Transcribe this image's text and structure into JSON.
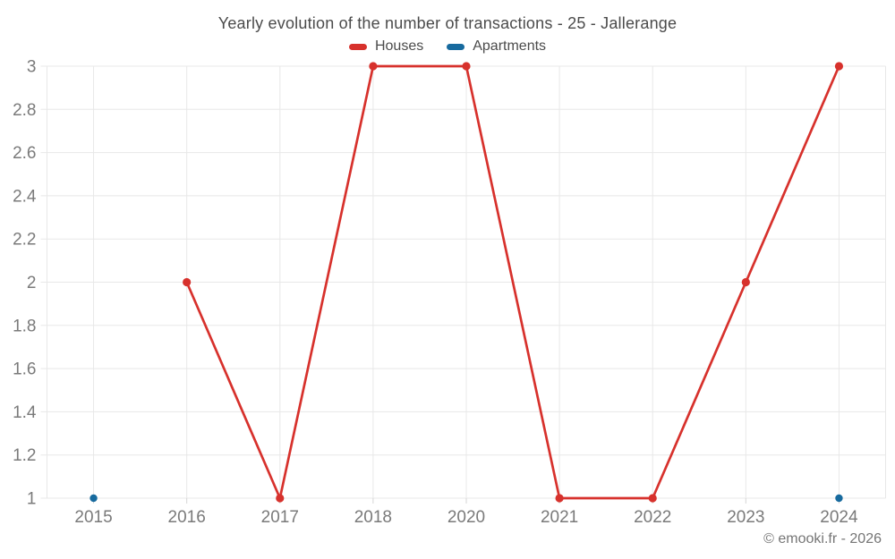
{
  "page": {
    "footer": "© emooki.fr - 2026"
  },
  "chart_data": {
    "type": "line",
    "title": "Yearly evolution of the number of transactions - 25 - Jallerange",
    "categories": [
      "2015",
      "2016",
      "2017",
      "2018",
      "2020",
      "2021",
      "2022",
      "2023",
      "2024"
    ],
    "series": [
      {
        "name": "Houses",
        "color": "#d7312c",
        "values": [
          null,
          2,
          1,
          3,
          3,
          1,
          1,
          2,
          3
        ]
      },
      {
        "name": "Apartments",
        "color": "#176a9e",
        "values": [
          1,
          null,
          null,
          null,
          null,
          null,
          null,
          null,
          1
        ]
      }
    ],
    "xlabel": "",
    "ylabel": "",
    "ylim": [
      1,
      3
    ],
    "y_ticks": [
      "1",
      "1.2",
      "1.4",
      "1.6",
      "1.8",
      "2",
      "2.2",
      "2.4",
      "2.6",
      "2.8",
      "3"
    ],
    "grid": true,
    "legend_position": "top",
    "colors": {
      "grid": "#e8e8e8",
      "axis_tick": "#d6d6d6",
      "tick_labels": "#7a7a7a",
      "title": "#4b4b4b",
      "footer": "#757575",
      "background": "#ffffff"
    }
  }
}
